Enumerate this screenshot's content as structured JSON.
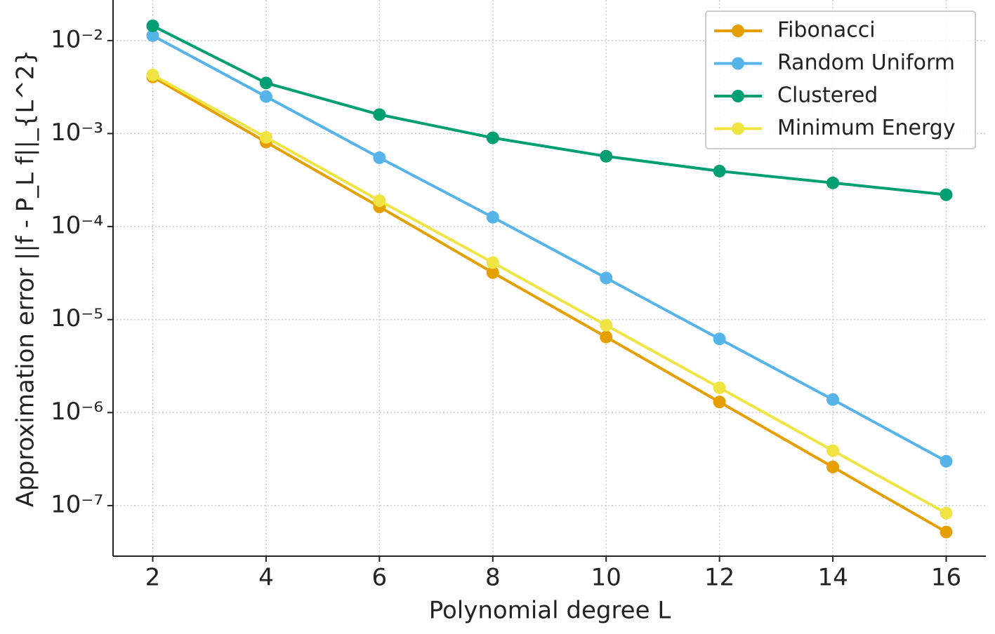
{
  "chart_data": {
    "type": "line",
    "xlabel": "Polynomial degree L",
    "ylabel": "Approximation error ||f - P_L f||_{L^2}",
    "x": [
      2,
      4,
      6,
      8,
      10,
      12,
      14,
      16
    ],
    "series": [
      {
        "name": "Fibonacci",
        "color": "#E69F00",
        "values": [
          0.00406,
          0.00081,
          0.000163,
          3.2e-05,
          6.5e-06,
          1.3e-06,
          2.6e-07,
          5.2e-08
        ]
      },
      {
        "name": "Random Uniform",
        "color": "#56B4E9",
        "values": [
          0.0113,
          0.0025,
          0.00055,
          0.000126,
          2.8e-05,
          6.2e-06,
          1.38e-06,
          3e-07
        ]
      },
      {
        "name": "Clustered",
        "color": "#009E73",
        "values": [
          0.0144,
          0.0035,
          0.0016,
          0.0009,
          0.00057,
          0.000395,
          0.000295,
          0.00022
        ]
      },
      {
        "name": "Minimum Energy",
        "color": "#F0E442",
        "values": [
          0.00427,
          0.00091,
          0.00019,
          4.1e-05,
          8.7e-06,
          1.85e-06,
          3.9e-07,
          8.3e-08
        ]
      }
    ],
    "xlim": [
      1.3,
      16.7
    ],
    "xticks": [
      2,
      4,
      6,
      8,
      10,
      12,
      14,
      16
    ],
    "ylim": [
      2.86e-08,
      0.0273
    ],
    "log_y": true,
    "yticks": [
      {
        "value": 0.01,
        "label": "10⁻²"
      },
      {
        "value": 0.001,
        "label": "10⁻³"
      },
      {
        "value": 0.0001,
        "label": "10⁻⁴"
      },
      {
        "value": 1e-05,
        "label": "10⁻⁵"
      },
      {
        "value": 1e-06,
        "label": "10⁻⁶"
      },
      {
        "value": 1e-07,
        "label": "10⁻⁷"
      }
    ],
    "grid": true,
    "legend": "upper right"
  }
}
